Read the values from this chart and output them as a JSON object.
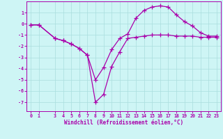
{
  "line1_x": [
    0,
    1,
    3,
    4,
    5,
    6,
    7,
    8,
    9,
    10,
    11,
    12,
    13,
    14,
    15,
    16,
    17,
    18,
    19,
    20,
    21,
    22,
    23
  ],
  "line1_y": [
    -0.1,
    -0.1,
    -1.3,
    -1.5,
    -1.8,
    -2.2,
    -2.8,
    -7.0,
    -6.3,
    -3.8,
    -2.5,
    -1.3,
    -1.2,
    -1.1,
    -1.0,
    -1.0,
    -1.0,
    -1.1,
    -1.1,
    -1.1,
    -1.2,
    -1.2,
    -1.2
  ],
  "line2_x": [
    0,
    1,
    3,
    4,
    5,
    6,
    7,
    8,
    9,
    10,
    11,
    12,
    13,
    14,
    15,
    16,
    17,
    18,
    19,
    20,
    21,
    22,
    23
  ],
  "line2_y": [
    -0.1,
    -0.1,
    -1.3,
    -1.5,
    -1.8,
    -2.2,
    -2.8,
    -5.0,
    -3.9,
    -2.3,
    -1.3,
    -0.9,
    0.5,
    1.2,
    1.5,
    1.6,
    1.5,
    0.8,
    0.2,
    -0.2,
    -0.8,
    -1.1,
    -1.1
  ],
  "line_color": "#aa00aa",
  "bg_color": "#cef5f5",
  "grid_color": "#aadddd",
  "xlabel": "Windchill (Refroidissement éolien,°C)",
  "xlim": [
    -0.5,
    23.5
  ],
  "ylim": [
    -7.8,
    2.0
  ],
  "yticks": [
    1,
    0,
    -1,
    -2,
    -3,
    -4,
    -5,
    -6,
    -7
  ],
  "xticks": [
    0,
    1,
    3,
    4,
    5,
    6,
    7,
    8,
    9,
    10,
    11,
    12,
    13,
    14,
    15,
    16,
    17,
    18,
    19,
    20,
    21,
    22,
    23
  ],
  "marker": "+",
  "markersize": 4,
  "linewidth": 0.9,
  "label_fontsize": 5.5,
  "tick_fontsize": 4.8
}
